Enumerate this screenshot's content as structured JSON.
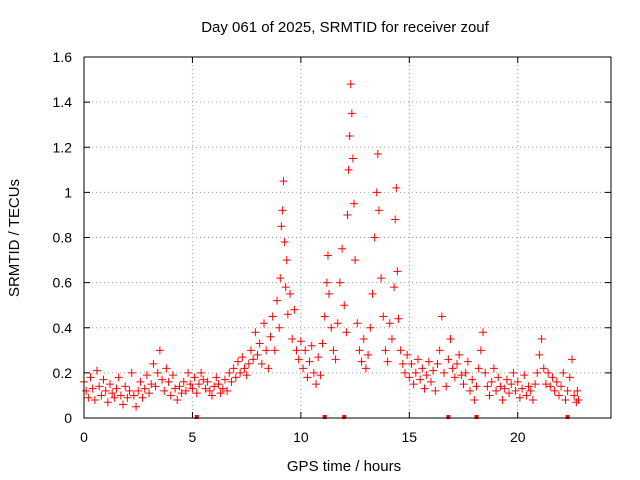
{
  "chart_data": {
    "type": "scatter",
    "title": "Day 061 of 2025, SRMTID for receiver zouf",
    "xlabel": "GPS time / hours",
    "ylabel": "SRMTID / TECUs",
    "xlim": [
      0,
      24.3
    ],
    "ylim": [
      0,
      1.6
    ],
    "xticks": [
      0,
      5,
      10,
      15,
      20
    ],
    "xtick_labels": [
      "0",
      "5",
      "10",
      "15",
      "20"
    ],
    "yticks": [
      0,
      0.2,
      0.4,
      0.6,
      0.8,
      1.0,
      1.2,
      1.4,
      1.6
    ],
    "ytick_labels": [
      "0",
      "0.2",
      "0.4",
      "0.6",
      "0.8",
      "1",
      "1.2",
      "1.4",
      "1.6"
    ],
    "grid": true,
    "marker": "+",
    "series_color": "#ff0000",
    "series": [
      {
        "name": "SRMTID",
        "points": [
          [
            0.0,
            0.16
          ],
          [
            0.1,
            0.12
          ],
          [
            0.2,
            0.09
          ],
          [
            0.3,
            0.18
          ],
          [
            0.4,
            0.13
          ],
          [
            0.5,
            0.08
          ],
          [
            0.6,
            0.21
          ],
          [
            0.7,
            0.14
          ],
          [
            0.8,
            0.1
          ],
          [
            0.9,
            0.17
          ],
          [
            1.0,
            0.12
          ],
          [
            1.1,
            0.07
          ],
          [
            1.2,
            0.15
          ],
          [
            1.3,
            0.11
          ],
          [
            1.4,
            0.09
          ],
          [
            1.5,
            0.13
          ],
          [
            1.6,
            0.18
          ],
          [
            1.7,
            0.1
          ],
          [
            1.8,
            0.06
          ],
          [
            1.9,
            0.14
          ],
          [
            2.0,
            0.09
          ],
          [
            2.1,
            0.12
          ],
          [
            2.2,
            0.2
          ],
          [
            2.3,
            0.1
          ],
          [
            2.4,
            0.05
          ],
          [
            2.5,
            0.12
          ],
          [
            2.6,
            0.16
          ],
          [
            2.7,
            0.09
          ],
          [
            2.8,
            0.13
          ],
          [
            2.9,
            0.19
          ],
          [
            3.0,
            0.11
          ],
          [
            3.1,
            0.15
          ],
          [
            3.2,
            0.24
          ],
          [
            3.3,
            0.14
          ],
          [
            3.4,
            0.2
          ],
          [
            3.5,
            0.3
          ],
          [
            3.6,
            0.17
          ],
          [
            3.7,
            0.12
          ],
          [
            3.8,
            0.22
          ],
          [
            3.9,
            0.16
          ],
          [
            4.0,
            0.1
          ],
          [
            4.1,
            0.19
          ],
          [
            4.2,
            0.13
          ],
          [
            4.3,
            0.08
          ],
          [
            4.4,
            0.14
          ],
          [
            4.5,
            0.11
          ],
          [
            4.6,
            0.16
          ],
          [
            4.7,
            0.12
          ],
          [
            4.8,
            0.2
          ],
          [
            4.9,
            0.15
          ],
          [
            5.0,
            0.13
          ],
          [
            5.1,
            0.18
          ],
          [
            5.2,
            0.11
          ],
          [
            5.3,
            0.15
          ],
          [
            5.4,
            0.2
          ],
          [
            5.5,
            0.17
          ],
          [
            5.6,
            0.13
          ],
          [
            5.7,
            0.16
          ],
          [
            5.8,
            0.12
          ],
          [
            5.9,
            0.1
          ],
          [
            6.0,
            0.14
          ],
          [
            6.1,
            0.18
          ],
          [
            6.2,
            0.15
          ],
          [
            6.3,
            0.11
          ],
          [
            6.4,
            0.13
          ],
          [
            6.5,
            0.17
          ],
          [
            6.6,
            0.12
          ],
          [
            6.7,
            0.2
          ],
          [
            6.8,
            0.16
          ],
          [
            6.9,
            0.22
          ],
          [
            7.0,
            0.18
          ],
          [
            7.1,
            0.25
          ],
          [
            7.2,
            0.2
          ],
          [
            7.3,
            0.27
          ],
          [
            7.4,
            0.22
          ],
          [
            7.5,
            0.19
          ],
          [
            7.6,
            0.24
          ],
          [
            7.7,
            0.3
          ],
          [
            7.8,
            0.26
          ],
          [
            7.9,
            0.38
          ],
          [
            8.0,
            0.28
          ],
          [
            8.1,
            0.33
          ],
          [
            8.2,
            0.24
          ],
          [
            8.3,
            0.42
          ],
          [
            8.4,
            0.3
          ],
          [
            8.5,
            0.22
          ],
          [
            8.6,
            0.36
          ],
          [
            8.7,
            0.45
          ],
          [
            8.8,
            0.3
          ],
          [
            8.9,
            0.52
          ],
          [
            9.0,
            0.4
          ],
          [
            9.05,
            0.62
          ],
          [
            9.1,
            0.85
          ],
          [
            9.15,
            0.92
          ],
          [
            9.2,
            1.05
          ],
          [
            9.25,
            0.78
          ],
          [
            9.3,
            0.58
          ],
          [
            9.35,
            0.7
          ],
          [
            9.4,
            0.46
          ],
          [
            9.5,
            0.55
          ],
          [
            9.6,
            0.35
          ],
          [
            9.7,
            0.48
          ],
          [
            9.8,
            0.3
          ],
          [
            9.9,
            0.26
          ],
          [
            10.0,
            0.34
          ],
          [
            10.1,
            0.22
          ],
          [
            10.2,
            0.3
          ],
          [
            10.3,
            0.18
          ],
          [
            10.4,
            0.25
          ],
          [
            10.5,
            0.32
          ],
          [
            10.6,
            0.2
          ],
          [
            10.7,
            0.15
          ],
          [
            10.8,
            0.27
          ],
          [
            10.9,
            0.19
          ],
          [
            11.0,
            0.33
          ],
          [
            11.1,
            0.45
          ],
          [
            11.2,
            0.6
          ],
          [
            11.25,
            0.72
          ],
          [
            11.3,
            0.55
          ],
          [
            11.4,
            0.4
          ],
          [
            11.5,
            0.3
          ],
          [
            11.6,
            0.26
          ],
          [
            11.7,
            0.42
          ],
          [
            11.8,
            0.6
          ],
          [
            11.9,
            0.75
          ],
          [
            12.0,
            0.5
          ],
          [
            12.1,
            0.38
          ],
          [
            12.15,
            0.9
          ],
          [
            12.2,
            1.1
          ],
          [
            12.25,
            1.25
          ],
          [
            12.3,
            1.48
          ],
          [
            12.35,
            1.35
          ],
          [
            12.4,
            1.15
          ],
          [
            12.45,
            0.95
          ],
          [
            12.5,
            0.7
          ],
          [
            12.6,
            0.42
          ],
          [
            12.7,
            0.3
          ],
          [
            12.8,
            0.25
          ],
          [
            12.9,
            0.35
          ],
          [
            13.0,
            0.22
          ],
          [
            13.1,
            0.28
          ],
          [
            13.2,
            0.4
          ],
          [
            13.3,
            0.55
          ],
          [
            13.4,
            0.8
          ],
          [
            13.5,
            1.0
          ],
          [
            13.55,
            1.17
          ],
          [
            13.6,
            0.92
          ],
          [
            13.7,
            0.62
          ],
          [
            13.8,
            0.45
          ],
          [
            13.9,
            0.3
          ],
          [
            14.0,
            0.25
          ],
          [
            14.1,
            0.42
          ],
          [
            14.2,
            0.35
          ],
          [
            14.3,
            0.58
          ],
          [
            14.35,
            0.88
          ],
          [
            14.4,
            1.02
          ],
          [
            14.45,
            0.65
          ],
          [
            14.5,
            0.44
          ],
          [
            14.6,
            0.3
          ],
          [
            14.7,
            0.24
          ],
          [
            14.8,
            0.2
          ],
          [
            14.9,
            0.28
          ],
          [
            15.0,
            0.18
          ],
          [
            15.1,
            0.24
          ],
          [
            15.2,
            0.15
          ],
          [
            15.3,
            0.2
          ],
          [
            15.4,
            0.26
          ],
          [
            15.5,
            0.17
          ],
          [
            15.6,
            0.22
          ],
          [
            15.7,
            0.13
          ],
          [
            15.8,
            0.19
          ],
          [
            15.9,
            0.25
          ],
          [
            16.0,
            0.16
          ],
          [
            16.1,
            0.21
          ],
          [
            16.2,
            0.12
          ],
          [
            16.3,
            0.24
          ],
          [
            16.4,
            0.3
          ],
          [
            16.5,
            0.45
          ],
          [
            16.6,
            0.2
          ],
          [
            16.7,
            0.14
          ],
          [
            16.8,
            0.26
          ],
          [
            16.9,
            0.35
          ],
          [
            17.0,
            0.22
          ],
          [
            17.1,
            0.18
          ],
          [
            17.2,
            0.24
          ],
          [
            17.3,
            0.28
          ],
          [
            17.4,
            0.19
          ],
          [
            17.5,
            0.15
          ],
          [
            17.6,
            0.2
          ],
          [
            17.7,
            0.25
          ],
          [
            17.8,
            0.12
          ],
          [
            17.9,
            0.17
          ],
          [
            18.0,
            0.08
          ],
          [
            18.1,
            0.14
          ],
          [
            18.2,
            0.22
          ],
          [
            18.3,
            0.3
          ],
          [
            18.4,
            0.38
          ],
          [
            18.5,
            0.2
          ],
          [
            18.6,
            0.14
          ],
          [
            18.7,
            0.1
          ],
          [
            18.8,
            0.16
          ],
          [
            18.9,
            0.22
          ],
          [
            19.0,
            0.12
          ],
          [
            19.1,
            0.18
          ],
          [
            19.2,
            0.14
          ],
          [
            19.3,
            0.08
          ],
          [
            19.4,
            0.13
          ],
          [
            19.5,
            0.17
          ],
          [
            19.6,
            0.11
          ],
          [
            19.7,
            0.15
          ],
          [
            19.8,
            0.2
          ],
          [
            19.9,
            0.12
          ],
          [
            20.0,
            0.16
          ],
          [
            20.1,
            0.09
          ],
          [
            20.2,
            0.13
          ],
          [
            20.3,
            0.19
          ],
          [
            20.4,
            0.1
          ],
          [
            20.5,
            0.14
          ],
          [
            20.6,
            0.12
          ],
          [
            20.7,
            0.08
          ],
          [
            20.8,
            0.15
          ],
          [
            20.9,
            0.2
          ],
          [
            21.0,
            0.28
          ],
          [
            21.1,
            0.35
          ],
          [
            21.2,
            0.22
          ],
          [
            21.3,
            0.15
          ],
          [
            21.4,
            0.2
          ],
          [
            21.5,
            0.14
          ],
          [
            21.6,
            0.18
          ],
          [
            21.7,
            0.12
          ],
          [
            21.8,
            0.16
          ],
          [
            21.9,
            0.1
          ],
          [
            22.0,
            0.14
          ],
          [
            22.1,
            0.2
          ],
          [
            22.2,
            0.08
          ],
          [
            22.3,
            0.12
          ],
          [
            22.4,
            0.18
          ],
          [
            22.5,
            0.26
          ],
          [
            22.6,
            0.1
          ],
          [
            22.7,
            0.07
          ],
          [
            22.75,
            0.12
          ],
          [
            22.8,
            0.08
          ]
        ]
      }
    ],
    "gap_markers_x": [
      5.2,
      11.1,
      12.0,
      16.8,
      18.1,
      22.3
    ]
  }
}
